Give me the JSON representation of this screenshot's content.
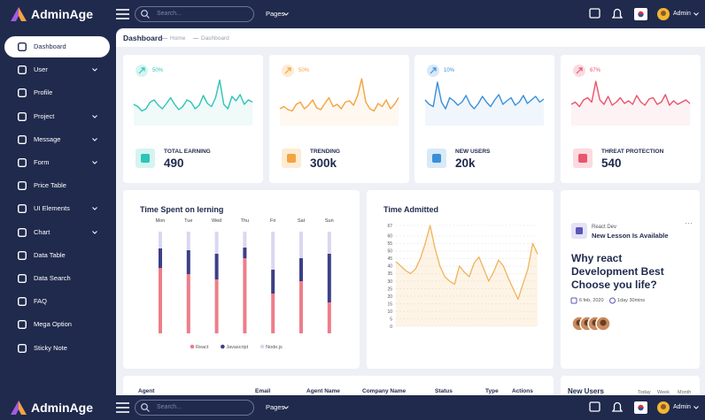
{
  "header": {
    "brand": "AdminAge",
    "search_placeholder": "Search...",
    "pages": "Pages",
    "user": "Admin"
  },
  "sidebar": {
    "active": 0,
    "menu": [
      {
        "label": "Dashboard",
        "submenu": false
      },
      {
        "label": "User",
        "submenu": true
      },
      {
        "label": "Profile",
        "submenu": false
      },
      {
        "label": "Project",
        "submenu": true
      },
      {
        "label": "Message",
        "submenu": true
      },
      {
        "label": "Form",
        "submenu": true
      },
      {
        "label": "Price Table",
        "submenu": false
      },
      {
        "label": "UI Elements",
        "submenu": true
      },
      {
        "label": "Chart",
        "submenu": true
      },
      {
        "label": "Data Table",
        "submenu": false
      },
      {
        "label": "Data Search",
        "submenu": false
      },
      {
        "label": "FAQ",
        "submenu": false
      },
      {
        "label": "Mega Option",
        "submenu": false
      },
      {
        "label": "Sticky Note",
        "submenu": false
      }
    ]
  },
  "breadcrumb": {
    "title": "Dashboard",
    "items": [
      "Home",
      "Dashboard"
    ]
  },
  "stats": [
    {
      "trend": "50%",
      "title": "TOTAL EARNING",
      "value": "490",
      "color": "#2ec4b6",
      "light": "#d5f4f0",
      "sparkline": [
        40,
        35,
        25,
        30,
        45,
        50,
        38,
        30,
        42,
        55,
        40,
        28,
        35,
        50,
        45,
        30,
        38,
        60,
        42,
        35,
        55,
        95,
        40,
        30,
        58,
        48,
        62,
        40,
        50,
        45
      ]
    },
    {
      "trend": "50%",
      "title": "TRENDING",
      "value": "300k",
      "color": "#f4a340",
      "light": "#fdebd3",
      "sparkline": [
        30,
        35,
        28,
        25,
        40,
        45,
        30,
        38,
        50,
        32,
        28,
        42,
        55,
        35,
        40,
        30,
        45,
        48,
        38,
        60,
        98,
        45,
        30,
        25,
        42,
        35,
        50,
        30,
        40,
        55
      ]
    },
    {
      "trend": "10%",
      "title": "NEW USERS",
      "value": "20k",
      "color": "#3a8fd9",
      "light": "#d8e9f8",
      "sparkline": [
        50,
        40,
        35,
        90,
        45,
        30,
        55,
        48,
        38,
        45,
        60,
        40,
        30,
        42,
        58,
        45,
        35,
        50,
        62,
        40,
        48,
        55,
        38,
        45,
        60,
        42,
        50,
        58,
        45,
        52
      ]
    },
    {
      "trend": "67%",
      "title": "THREAT PROTECTION",
      "value": "540",
      "color": "#e8556d",
      "light": "#fbdbe0",
      "sparkline": [
        40,
        45,
        35,
        50,
        55,
        45,
        92,
        50,
        40,
        58,
        38,
        45,
        55,
        42,
        48,
        40,
        60,
        45,
        38,
        52,
        55,
        40,
        45,
        62,
        38,
        48,
        40,
        45,
        50,
        42
      ]
    }
  ],
  "time_spent": {
    "title": "Time Spent on lerning",
    "categories": [
      "Mon",
      "Tue",
      "Wed",
      "Thu",
      "Fri",
      "Sat",
      "Sun"
    ],
    "series": [
      {
        "name": "React",
        "color": "#ee7d8a",
        "values": [
          74,
          67,
          61,
          85,
          45,
          59,
          35
        ]
      },
      {
        "name": "Javascript",
        "color": "#3c3f86",
        "values": [
          22,
          27,
          29,
          12,
          27,
          26,
          55
        ]
      },
      {
        "name": "Node.js",
        "color": "#d9d7f1",
        "values": [
          19,
          21,
          25,
          18,
          43,
          30,
          25
        ]
      }
    ]
  },
  "time_admitted": {
    "title": "Time Admitted",
    "color": "#f0b35a",
    "ylim": [
      0,
      67
    ],
    "yticks": [
      0,
      5,
      10,
      15,
      20,
      25,
      30,
      35,
      40,
      45,
      50,
      55,
      60,
      67
    ],
    "values": [
      43,
      40,
      37,
      35,
      38,
      45,
      55,
      67,
      52,
      40,
      33,
      30,
      28,
      40,
      36,
      33,
      42,
      46,
      38,
      30,
      36,
      44,
      40,
      32,
      25,
      18,
      28,
      38,
      55,
      48
    ]
  },
  "lesson": {
    "tag": "React Dev",
    "heading": "New Lesson Is Available",
    "text": "Why react Development Best Choose you life?",
    "date": "6 feb, 2020",
    "duration": "1day 30mins"
  },
  "table": {
    "headers": [
      "Agent",
      "Email",
      "Agent Name",
      "Company Name",
      "Status",
      "Type",
      "Actions"
    ]
  },
  "new_users": {
    "title": "New Users",
    "filters": [
      "Today",
      "Week",
      "Month"
    ]
  }
}
